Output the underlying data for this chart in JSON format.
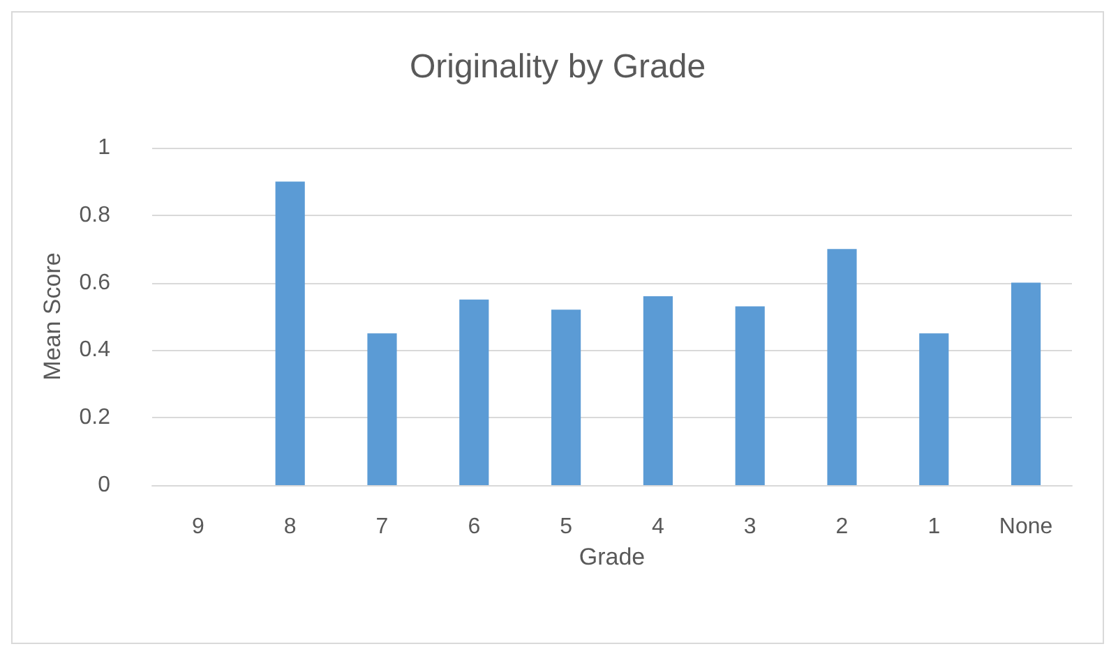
{
  "chart_data": {
    "type": "bar",
    "title": "Originality by Grade",
    "xlabel": "Grade",
    "ylabel": "Mean Score",
    "categories": [
      "9",
      "8",
      "7",
      "6",
      "5",
      "4",
      "3",
      "2",
      "1",
      "None"
    ],
    "values": [
      0,
      0.9,
      0.45,
      0.55,
      0.52,
      0.56,
      0.53,
      0.7,
      0.45,
      0.6
    ],
    "color": "#5b9bd5",
    "ylim": [
      0,
      1
    ],
    "yticks": [
      0,
      0.2,
      0.4,
      0.6,
      0.8,
      1
    ],
    "grid": "y"
  }
}
